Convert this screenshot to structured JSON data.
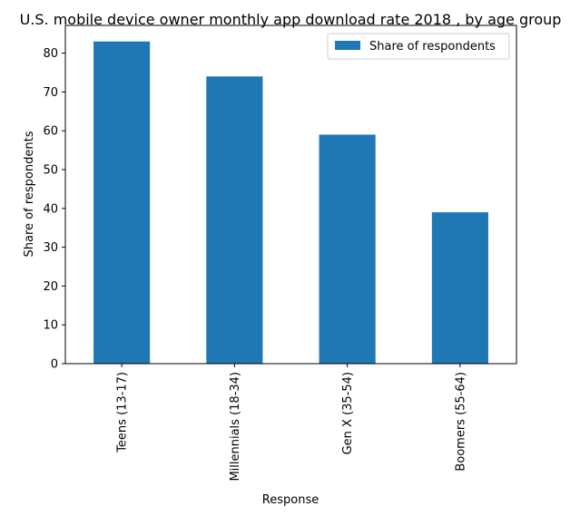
{
  "chart_data": {
    "type": "bar",
    "title": "U.S. mobile device owner monthly app download rate 2018 , by age group",
    "xlabel": "Response",
    "ylabel": "Share of respondents",
    "categories": [
      "Teens (13-17)",
      "Millennials (18-34)",
      "Gen X (35-54)",
      "Boomers (55-64)"
    ],
    "series": [
      {
        "name": "Share of respondents",
        "values": [
          83,
          74,
          59,
          39
        ],
        "color": "#1f77b4"
      }
    ],
    "ylim": [
      0,
      87.15
    ],
    "yticks": [
      0,
      10,
      20,
      30,
      40,
      50,
      60,
      70,
      80
    ],
    "grid": false,
    "legend_position": "top-right"
  }
}
